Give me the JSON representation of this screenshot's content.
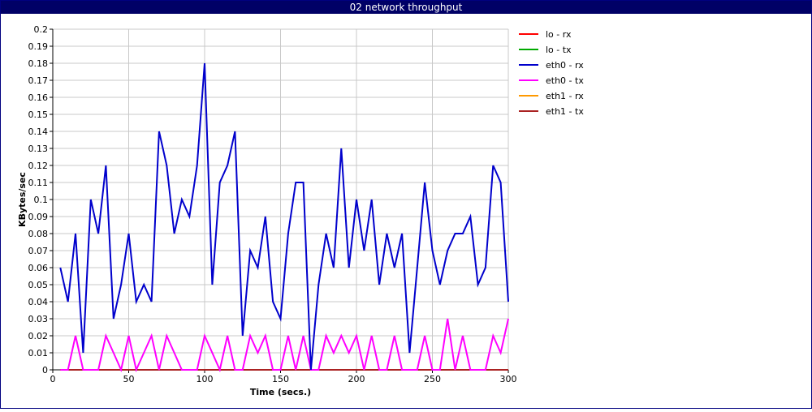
{
  "window": {
    "title": "02 network throughput"
  },
  "chart_data": {
    "type": "line",
    "title": "02 network throughput",
    "xlabel": "Time (secs.)",
    "ylabel": "KBytes/sec",
    "xlim": [
      0,
      300
    ],
    "ylim": [
      0,
      0.2
    ],
    "x_ticks": [
      "0",
      "50",
      "100",
      "150",
      "200",
      "250",
      "300"
    ],
    "y_ticks": [
      "0",
      "0.01",
      "0.02",
      "0.03",
      "0.04",
      "0.05",
      "0.06",
      "0.07",
      "0.08",
      "0.09",
      "0.1",
      "0.11",
      "0.12",
      "0.13",
      "0.14",
      "0.15",
      "0.16",
      "0.17",
      "0.18",
      "0.19",
      "0.2"
    ],
    "grid": true,
    "legend_position": "right",
    "x": [
      5,
      10,
      15,
      20,
      25,
      30,
      35,
      40,
      45,
      50,
      55,
      60,
      65,
      70,
      75,
      80,
      85,
      90,
      95,
      100,
      105,
      110,
      115,
      120,
      125,
      130,
      135,
      140,
      145,
      150,
      155,
      160,
      165,
      170,
      175,
      180,
      185,
      190,
      195,
      200,
      205,
      210,
      215,
      220,
      225,
      230,
      235,
      240,
      245,
      250,
      255,
      260,
      265,
      270,
      275,
      280,
      285,
      290,
      295,
      300
    ],
    "series": [
      {
        "name": "lo - rx",
        "color": "#ff0000",
        "values": [
          0,
          0,
          0,
          0,
          0,
          0,
          0,
          0,
          0,
          0,
          0,
          0,
          0,
          0,
          0,
          0,
          0,
          0,
          0,
          0,
          0,
          0,
          0,
          0,
          0,
          0,
          0,
          0,
          0,
          0,
          0,
          0,
          0,
          0,
          0,
          0,
          0,
          0,
          0,
          0,
          0,
          0,
          0,
          0,
          0,
          0,
          0,
          0,
          0,
          0,
          0,
          0,
          0,
          0,
          0,
          0,
          0,
          0,
          0,
          0
        ]
      },
      {
        "name": "lo - tx",
        "color": "#00aa00",
        "values": [
          0,
          0,
          0,
          0,
          0,
          0,
          0,
          0,
          0,
          0,
          0,
          0,
          0,
          0,
          0,
          0,
          0,
          0,
          0,
          0,
          0,
          0,
          0,
          0,
          0,
          0,
          0,
          0,
          0,
          0,
          0,
          0,
          0,
          0,
          0,
          0,
          0,
          0,
          0,
          0,
          0,
          0,
          0,
          0,
          0,
          0,
          0,
          0,
          0,
          0,
          0,
          0,
          0,
          0,
          0,
          0,
          0,
          0,
          0,
          0
        ]
      },
      {
        "name": "eth0 - rx",
        "color": "#0000cc",
        "values": [
          0.06,
          0.04,
          0.08,
          0.01,
          0.1,
          0.08,
          0.12,
          0.03,
          0.05,
          0.08,
          0.04,
          0.05,
          0.04,
          0.14,
          0.12,
          0.08,
          0.1,
          0.09,
          0.12,
          0.18,
          0.05,
          0.11,
          0.12,
          0.14,
          0.02,
          0.07,
          0.06,
          0.09,
          0.04,
          0.03,
          0.08,
          0.11,
          0.11,
          0,
          0.05,
          0.08,
          0.06,
          0.13,
          0.06,
          0.1,
          0.07,
          0.1,
          0.05,
          0.08,
          0.06,
          0.08,
          0.01,
          0.06,
          0.11,
          0.07,
          0.05,
          0.07,
          0.08,
          0.08,
          0.09,
          0.05,
          0.06,
          0.12,
          0.11,
          0.04
        ]
      },
      {
        "name": "eth0 - tx",
        "color": "#ff00ff",
        "values": [
          0,
          0,
          0.02,
          0,
          0,
          0,
          0.02,
          0.01,
          0,
          0.02,
          0,
          0.01,
          0.02,
          0,
          0.02,
          0.01,
          0,
          0,
          0,
          0.02,
          0.01,
          0,
          0.02,
          0,
          0,
          0.02,
          0.01,
          0.02,
          0,
          0,
          0.02,
          0,
          0.02,
          0,
          0,
          0.02,
          0.01,
          0.02,
          0.01,
          0.02,
          0,
          0.02,
          0,
          0,
          0.02,
          0,
          0,
          0,
          0.02,
          0,
          0,
          0.03,
          0,
          0.02,
          0,
          0,
          0,
          0.02,
          0.01,
          0.03
        ]
      },
      {
        "name": "eth1 - rx",
        "color": "#ff9900",
        "values": [
          0,
          0,
          0,
          0,
          0,
          0,
          0,
          0,
          0,
          0,
          0,
          0,
          0,
          0,
          0,
          0,
          0,
          0,
          0,
          0,
          0,
          0,
          0,
          0,
          0,
          0,
          0,
          0,
          0,
          0,
          0,
          0,
          0,
          0,
          0,
          0,
          0,
          0,
          0,
          0,
          0,
          0,
          0,
          0,
          0,
          0,
          0,
          0,
          0,
          0,
          0,
          0,
          0,
          0,
          0,
          0,
          0,
          0,
          0,
          0
        ]
      },
      {
        "name": "eth1 - tx",
        "color": "#aa2222",
        "values": [
          0,
          0,
          0,
          0,
          0,
          0,
          0,
          0,
          0,
          0,
          0,
          0,
          0,
          0,
          0,
          0,
          0,
          0,
          0,
          0,
          0,
          0,
          0,
          0,
          0,
          0,
          0,
          0,
          0,
          0,
          0,
          0,
          0,
          0,
          0,
          0,
          0,
          0,
          0,
          0,
          0,
          0,
          0,
          0,
          0,
          0,
          0,
          0,
          0,
          0,
          0,
          0,
          0,
          0,
          0,
          0,
          0,
          0,
          0,
          0
        ]
      }
    ]
  }
}
